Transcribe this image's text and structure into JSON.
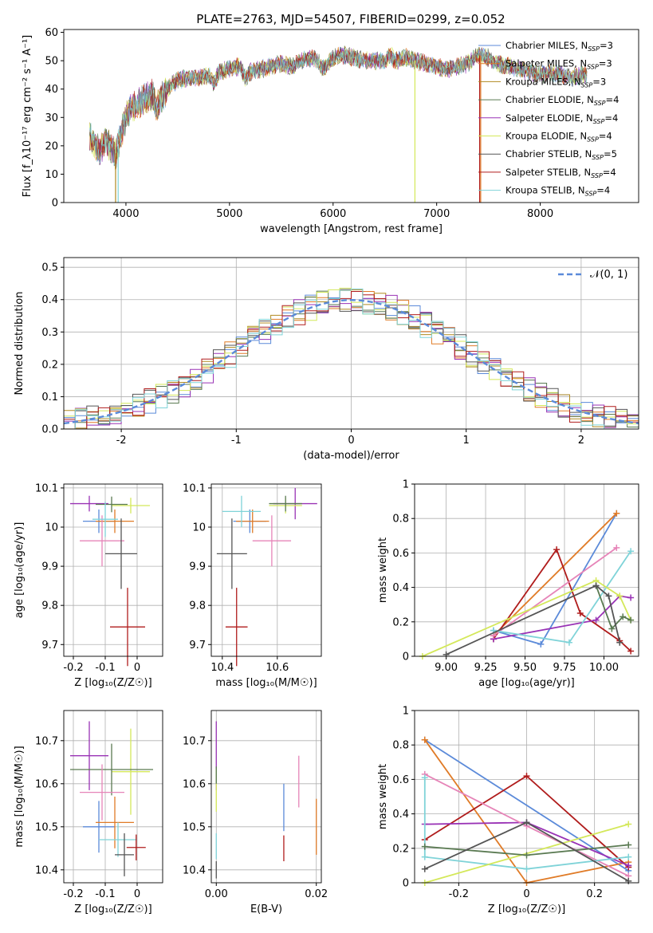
{
  "title": "PLATE=2763, MJD=54507, FIBERID=0299, z=0.052",
  "colors": {
    "blue": "#5b8ad9",
    "orange": "#e07b27",
    "grey": "#666666",
    "pink": "#e684b8",
    "red": "#b01c1c",
    "purple": "#9932b5",
    "cyan": "#7fd3d8",
    "lime": "#d4e85a",
    "green": "#5a7a52",
    "darkred": "#a01818",
    "olive": "#b08a20"
  },
  "chart_data": [
    {
      "id": "spectrum",
      "type": "line",
      "xlabel": "wavelength [Angstrom, rest frame]",
      "ylabel": "Flux [f_λ10⁻¹⁷ erg cm⁻² s⁻¹ A⁻¹]",
      "xlim": [
        3400,
        8950
      ],
      "ylim": [
        0,
        61
      ],
      "xticks": [
        4000,
        5000,
        6000,
        7000,
        8000
      ],
      "yticks": [
        0,
        10,
        20,
        30,
        40,
        50,
        60
      ],
      "grid": false,
      "legend": "top-right",
      "series": [
        {
          "name": "Chabrier MILES, N",
          "sub": "SSP",
          "suffix": "=3",
          "color": "#5b8ad9"
        },
        {
          "name": "Salpeter MILES, N",
          "sub": "SSP",
          "suffix": "=3",
          "color": "#e07b27"
        },
        {
          "name": "Kroupa MILES, N",
          "sub": "SSP",
          "suffix": "=3",
          "color": "#b08a20"
        },
        {
          "name": "Chabrier ELODIE, N",
          "sub": "SSP",
          "suffix": "=4",
          "color": "#5a7a52"
        },
        {
          "name": "Salpeter ELODIE, N",
          "sub": "SSP",
          "suffix": "=4",
          "color": "#9932b5"
        },
        {
          "name": "Kroupa ELODIE, N",
          "sub": "SSP",
          "suffix": "=4",
          "color": "#d4e85a"
        },
        {
          "name": "Chabrier STELIB, N",
          "sub": "SSP",
          "suffix": "=5",
          "color": "#555555"
        },
        {
          "name": "Salpeter STELIB, N",
          "sub": "SSP",
          "suffix": "=4",
          "color": "#b01c1c"
        },
        {
          "name": "Kroupa STELIB, N",
          "sub": "SSP",
          "suffix": "=4",
          "color": "#7fd3d8"
        }
      ],
      "envelope": [
        [
          3650,
          24
        ],
        [
          3700,
          20
        ],
        [
          3750,
          18
        ],
        [
          3800,
          22
        ],
        [
          3850,
          20
        ],
        [
          3900,
          17
        ],
        [
          3950,
          24
        ],
        [
          4000,
          30
        ],
        [
          4050,
          34
        ],
        [
          4100,
          34
        ],
        [
          4150,
          36
        ],
        [
          4200,
          37
        ],
        [
          4250,
          38
        ],
        [
          4300,
          34
        ],
        [
          4350,
          37
        ],
        [
          4400,
          40
        ],
        [
          4450,
          42
        ],
        [
          4500,
          43
        ],
        [
          4600,
          44
        ],
        [
          4700,
          44
        ],
        [
          4800,
          45
        ],
        [
          4850,
          42
        ],
        [
          4900,
          46
        ],
        [
          5000,
          47
        ],
        [
          5100,
          48
        ],
        [
          5150,
          44
        ],
        [
          5200,
          46
        ],
        [
          5300,
          47
        ],
        [
          5400,
          48
        ],
        [
          5500,
          49
        ],
        [
          5600,
          48
        ],
        [
          5700,
          50
        ],
        [
          5800,
          51
        ],
        [
          5850,
          50
        ],
        [
          5900,
          47
        ],
        [
          6000,
          51
        ],
        [
          6100,
          52
        ],
        [
          6200,
          51
        ],
        [
          6300,
          50
        ],
        [
          6400,
          50
        ],
        [
          6500,
          50
        ],
        [
          6550,
          52
        ],
        [
          6600,
          50
        ],
        [
          6700,
          51
        ],
        [
          6800,
          50
        ],
        [
          6900,
          49
        ],
        [
          7000,
          48
        ],
        [
          7100,
          47
        ],
        [
          7200,
          48
        ],
        [
          7300,
          49
        ],
        [
          7400,
          52
        ],
        [
          7500,
          51
        ],
        [
          7600,
          49
        ],
        [
          7700,
          48
        ],
        [
          7800,
          47
        ],
        [
          7900,
          46
        ],
        [
          8000,
          45
        ],
        [
          8100,
          46
        ],
        [
          8200,
          45
        ],
        [
          8300,
          44
        ],
        [
          8400,
          45
        ]
      ],
      "dropouts": [
        [
          3900,
          "#b08a20"
        ],
        [
          3925,
          "#7fd3d8"
        ],
        [
          6790,
          "#d4e85a"
        ],
        [
          7415,
          "#b01c1c"
        ],
        [
          7425,
          "#e07b27"
        ]
      ]
    },
    {
      "id": "residuals",
      "type": "histogram",
      "xlabel": "(data-model)/error",
      "ylabel": "Normed distribution",
      "xlim": [
        -2.5,
        2.5
      ],
      "ylim": [
        0,
        0.53
      ],
      "xticks": [
        -2,
        -1,
        0,
        1,
        2
      ],
      "yticks": [
        0.0,
        0.1,
        0.2,
        0.3,
        0.4,
        0.5
      ],
      "grid": true,
      "legend": "top-right",
      "gaussian_label": "𝒩(0, 1)",
      "bin_width": 0.1
    },
    {
      "id": "age_vs_Z",
      "type": "errorbar",
      "xlabel": "Z [log₁₀(Z/Z☉)]",
      "ylabel": "age  [log₁₀(age/yr)]",
      "xlim": [
        -0.23,
        0.08
      ],
      "ylim": [
        9.67,
        10.11
      ],
      "xticks": [
        -0.2,
        -0.1,
        0.0
      ],
      "yticks": [
        9.7,
        9.8,
        9.9,
        10.0,
        10.1
      ],
      "points": [
        {
          "x": -0.12,
          "xe": 0.05,
          "y": 10.015,
          "ye": 0.03,
          "color": "#5b8ad9"
        },
        {
          "x": -0.07,
          "xe": 0.06,
          "y": 10.015,
          "ye": 0.03,
          "color": "#e07b27"
        },
        {
          "x": -0.15,
          "xe": 0.06,
          "y": 10.06,
          "ye": 0.02,
          "color": "#9932b5"
        },
        {
          "x": -0.02,
          "xe": 0.06,
          "y": 10.055,
          "ye": 0.02,
          "color": "#d4e85a"
        },
        {
          "x": -0.08,
          "xe": 0.05,
          "y": 10.058,
          "ye": 0.02,
          "color": "#5a7a52"
        },
        {
          "x": -0.11,
          "xe": 0.07,
          "y": 9.965,
          "ye": 0.065,
          "color": "#e684b8"
        },
        {
          "x": -0.1,
          "xe": 0.04,
          "y": 10.02,
          "ye": 0.045,
          "color": "#7fd3d8"
        },
        {
          "x": -0.05,
          "xe": 0.05,
          "y": 9.932,
          "ye": 0.09,
          "color": "#555555"
        },
        {
          "x": -0.03,
          "xe": 0.055,
          "y": 9.745,
          "ye": 0.1,
          "color": "#b01c1c"
        }
      ]
    },
    {
      "id": "age_vs_mass",
      "type": "errorbar",
      "xlabel": "mass [log₁₀(M/M☉)]",
      "ylabel": "",
      "xlim": [
        10.36,
        10.76
      ],
      "ylim": [
        9.67,
        10.11
      ],
      "xticks": [
        10.4,
        10.6
      ],
      "yticks": [
        9.7,
        9.8,
        9.9,
        10.0,
        10.1
      ],
      "points": [
        {
          "x": 10.5,
          "xe": 0.06,
          "y": 10.015,
          "ye": 0.03,
          "color": "#5b8ad9"
        },
        {
          "x": 10.51,
          "xe": 0.06,
          "y": 10.015,
          "ye": 0.03,
          "color": "#e07b27"
        },
        {
          "x": 10.665,
          "xe": 0.08,
          "y": 10.06,
          "ye": 0.04,
          "color": "#9932b5"
        },
        {
          "x": 10.63,
          "xe": 0.06,
          "y": 10.055,
          "ye": 0.02,
          "color": "#d4e85a"
        },
        {
          "x": 10.63,
          "xe": 0.06,
          "y": 10.06,
          "ye": 0.02,
          "color": "#5a7a52"
        },
        {
          "x": 10.58,
          "xe": 0.07,
          "y": 9.965,
          "ye": 0.065,
          "color": "#e684b8"
        },
        {
          "x": 10.47,
          "xe": 0.07,
          "y": 10.04,
          "ye": 0.04,
          "color": "#7fd3d8"
        },
        {
          "x": 10.435,
          "xe": 0.055,
          "y": 9.932,
          "ye": 0.09,
          "color": "#555555"
        },
        {
          "x": 10.452,
          "xe": 0.04,
          "y": 9.745,
          "ye": 0.1,
          "color": "#b01c1c"
        }
      ]
    },
    {
      "id": "weight_vs_age",
      "type": "line",
      "xlabel": "age  [log₁₀(age/yr)]",
      "ylabel": "mass weight",
      "xlim": [
        8.8,
        10.22
      ],
      "ylim": [
        0,
        1
      ],
      "xticks": [
        9.0,
        9.25,
        9.5,
        9.75,
        10.0
      ],
      "xtick_labels": [
        "9.00",
        "9.25",
        "9.50",
        "9.75",
        "10.00"
      ],
      "yticks": [
        0.0,
        0.2,
        0.4,
        0.6,
        0.8,
        1.0
      ],
      "grid": true,
      "series": [
        {
          "color": "#5b8ad9",
          "points": [
            [
              9.3,
              0.15
            ],
            [
              9.6,
              0.07
            ],
            [
              10.08,
              0.83
            ]
          ]
        },
        {
          "color": "#e07b27",
          "points": [
            [
              9.3,
              0.12
            ],
            [
              10.08,
              0.83
            ]
          ]
        },
        {
          "color": "#b01c1c",
          "points": [
            [
              9.3,
              0.1
            ],
            [
              9.7,
              0.62
            ],
            [
              9.85,
              0.25
            ],
            [
              10.1,
              0.09
            ],
            [
              10.17,
              0.03
            ]
          ]
        },
        {
          "color": "#9932b5",
          "points": [
            [
              9.3,
              0.1
            ],
            [
              9.95,
              0.21
            ],
            [
              10.1,
              0.35
            ],
            [
              10.17,
              0.34
            ]
          ]
        },
        {
          "color": "#e684b8",
          "points": [
            [
              9.3,
              0.12
            ],
            [
              10.08,
              0.63
            ]
          ]
        },
        {
          "color": "#7fd3d8",
          "points": [
            [
              9.3,
              0.15
            ],
            [
              9.78,
              0.08
            ],
            [
              10.17,
              0.61
            ]
          ]
        },
        {
          "color": "#d4e85a",
          "points": [
            [
              8.85,
              0.0
            ],
            [
              9.95,
              0.44
            ],
            [
              10.1,
              0.35
            ],
            [
              10.17,
              0.21
            ]
          ]
        },
        {
          "color": "#5a7a52",
          "points": [
            [
              9.95,
              0.41
            ],
            [
              10.05,
              0.16
            ],
            [
              10.12,
              0.23
            ],
            [
              10.17,
              0.21
            ]
          ]
        },
        {
          "color": "#555555",
          "points": [
            [
              9.0,
              0.01
            ],
            [
              9.95,
              0.41
            ],
            [
              10.03,
              0.35
            ],
            [
              10.1,
              0.08
            ]
          ]
        }
      ]
    },
    {
      "id": "mass_vs_Z",
      "type": "errorbar",
      "xlabel": "Z [log₁₀(Z/Z☉)]",
      "ylabel": "mass [log₁₀(M/M☉)]",
      "xlim": [
        -0.23,
        0.08
      ],
      "ylim": [
        10.37,
        10.77
      ],
      "xticks": [
        -0.2,
        -0.1,
        0.0
      ],
      "yticks": [
        10.4,
        10.5,
        10.6,
        10.7
      ],
      "points": [
        {
          "x": -0.12,
          "xe": 0.05,
          "y": 10.5,
          "ye": 0.06,
          "color": "#5b8ad9"
        },
        {
          "x": -0.07,
          "xe": 0.06,
          "y": 10.51,
          "ye": 0.06,
          "color": "#e07b27"
        },
        {
          "x": -0.15,
          "xe": 0.06,
          "y": 10.665,
          "ye": 0.08,
          "color": "#9932b5"
        },
        {
          "x": -0.02,
          "xe": 0.06,
          "y": 10.628,
          "ye": 0.1,
          "color": "#d4e85a"
        },
        {
          "x": -0.08,
          "xe": 0.13,
          "y": 10.633,
          "ye": 0.06,
          "color": "#5a7a52"
        },
        {
          "x": -0.11,
          "xe": 0.07,
          "y": 10.58,
          "ye": 0.065,
          "color": "#e684b8"
        },
        {
          "x": -0.06,
          "xe": 0.06,
          "y": 10.47,
          "ye": 0.04,
          "color": "#7fd3d8"
        },
        {
          "x": -0.04,
          "xe": 0.03,
          "y": 10.435,
          "ye": 0.05,
          "color": "#555555"
        },
        {
          "x": -0.003,
          "xe": 0.03,
          "y": 10.452,
          "ye": 0.03,
          "color": "#b01c1c"
        }
      ]
    },
    {
      "id": "mass_vs_EBV",
      "type": "errorbar",
      "xlabel": "E(B-V)",
      "ylabel": "",
      "xlim": [
        -0.001,
        0.021
      ],
      "ylim": [
        10.37,
        10.77
      ],
      "xticks": [
        0.0,
        0.02
      ],
      "xtick_labels": [
        "0.00",
        "0.02"
      ],
      "yticks": [
        10.4,
        10.5,
        10.6,
        10.7
      ],
      "points": [
        {
          "x": 0.0135,
          "xe": 0,
          "y": 10.545,
          "ye": 0.055,
          "color": "#5b8ad9"
        },
        {
          "x": 0.02,
          "xe": 0,
          "y": 10.5,
          "ye": 0.065,
          "color": "#e07b27"
        },
        {
          "x": 0.0,
          "xe": 0,
          "y": 10.665,
          "ye": 0.08,
          "color": "#9932b5"
        },
        {
          "x": 0.0,
          "xe": 0,
          "y": 10.585,
          "ye": 0.05,
          "color": "#d4e85a"
        },
        {
          "x": 0.0,
          "xe": 0,
          "y": 10.62,
          "ye": 0.02,
          "color": "#5a7a52"
        },
        {
          "x": 0.0165,
          "xe": 0,
          "y": 10.605,
          "ye": 0.06,
          "color": "#e684b8"
        },
        {
          "x": 0.0,
          "xe": 0,
          "y": 10.455,
          "ye": 0.03,
          "color": "#7fd3d8"
        },
        {
          "x": 0.0,
          "xe": 0,
          "y": 10.4,
          "ye": 0.02,
          "color": "#555555"
        },
        {
          "x": 0.0135,
          "xe": 0,
          "y": 10.45,
          "ye": 0.03,
          "color": "#b01c1c"
        }
      ]
    },
    {
      "id": "weight_vs_Z",
      "type": "line",
      "xlabel": "Z [log₁₀(Z/Z☉)]",
      "ylabel": "mass weight",
      "xlim": [
        -0.33,
        0.33
      ],
      "ylim": [
        0,
        1
      ],
      "xticks": [
        -0.2,
        0.0,
        0.2
      ],
      "yticks": [
        0.0,
        0.2,
        0.4,
        0.6,
        0.8,
        1.0
      ],
      "grid": true,
      "series": [
        {
          "color": "#5b8ad9",
          "points": [
            [
              -0.3,
              0.83
            ],
            [
              0.3,
              0.07
            ]
          ]
        },
        {
          "color": "#e07b27",
          "points": [
            [
              -0.3,
              0.83
            ],
            [
              0.0,
              0.0
            ],
            [
              0.3,
              0.12
            ]
          ]
        },
        {
          "color": "#b01c1c",
          "points": [
            [
              -0.3,
              0.25
            ],
            [
              0.0,
              0.62
            ],
            [
              0.3,
              0.09
            ]
          ]
        },
        {
          "color": "#9932b5",
          "points": [
            [
              -0.3,
              0.34
            ],
            [
              0.0,
              0.35
            ],
            [
              0.3,
              0.1
            ]
          ]
        },
        {
          "color": "#e684b8",
          "points": [
            [
              -0.3,
              0.63
            ],
            [
              0.0,
              0.33
            ],
            [
              0.3,
              0.04
            ]
          ]
        },
        {
          "color": "#7fd3d8",
          "points": [
            [
              -0.3,
              0.61
            ],
            [
              -0.3,
              0.15
            ],
            [
              0.0,
              0.08
            ],
            [
              0.3,
              0.15
            ]
          ]
        },
        {
          "color": "#d4e85a",
          "points": [
            [
              -0.3,
              0.0
            ],
            [
              0.3,
              0.34
            ]
          ]
        },
        {
          "color": "#5a7a52",
          "points": [
            [
              -0.3,
              0.21
            ],
            [
              0.0,
              0.16
            ],
            [
              0.3,
              0.22
            ]
          ]
        },
        {
          "color": "#555555",
          "points": [
            [
              -0.3,
              0.08
            ],
            [
              0.0,
              0.35
            ],
            [
              0.3,
              0.01
            ]
          ]
        }
      ]
    }
  ]
}
